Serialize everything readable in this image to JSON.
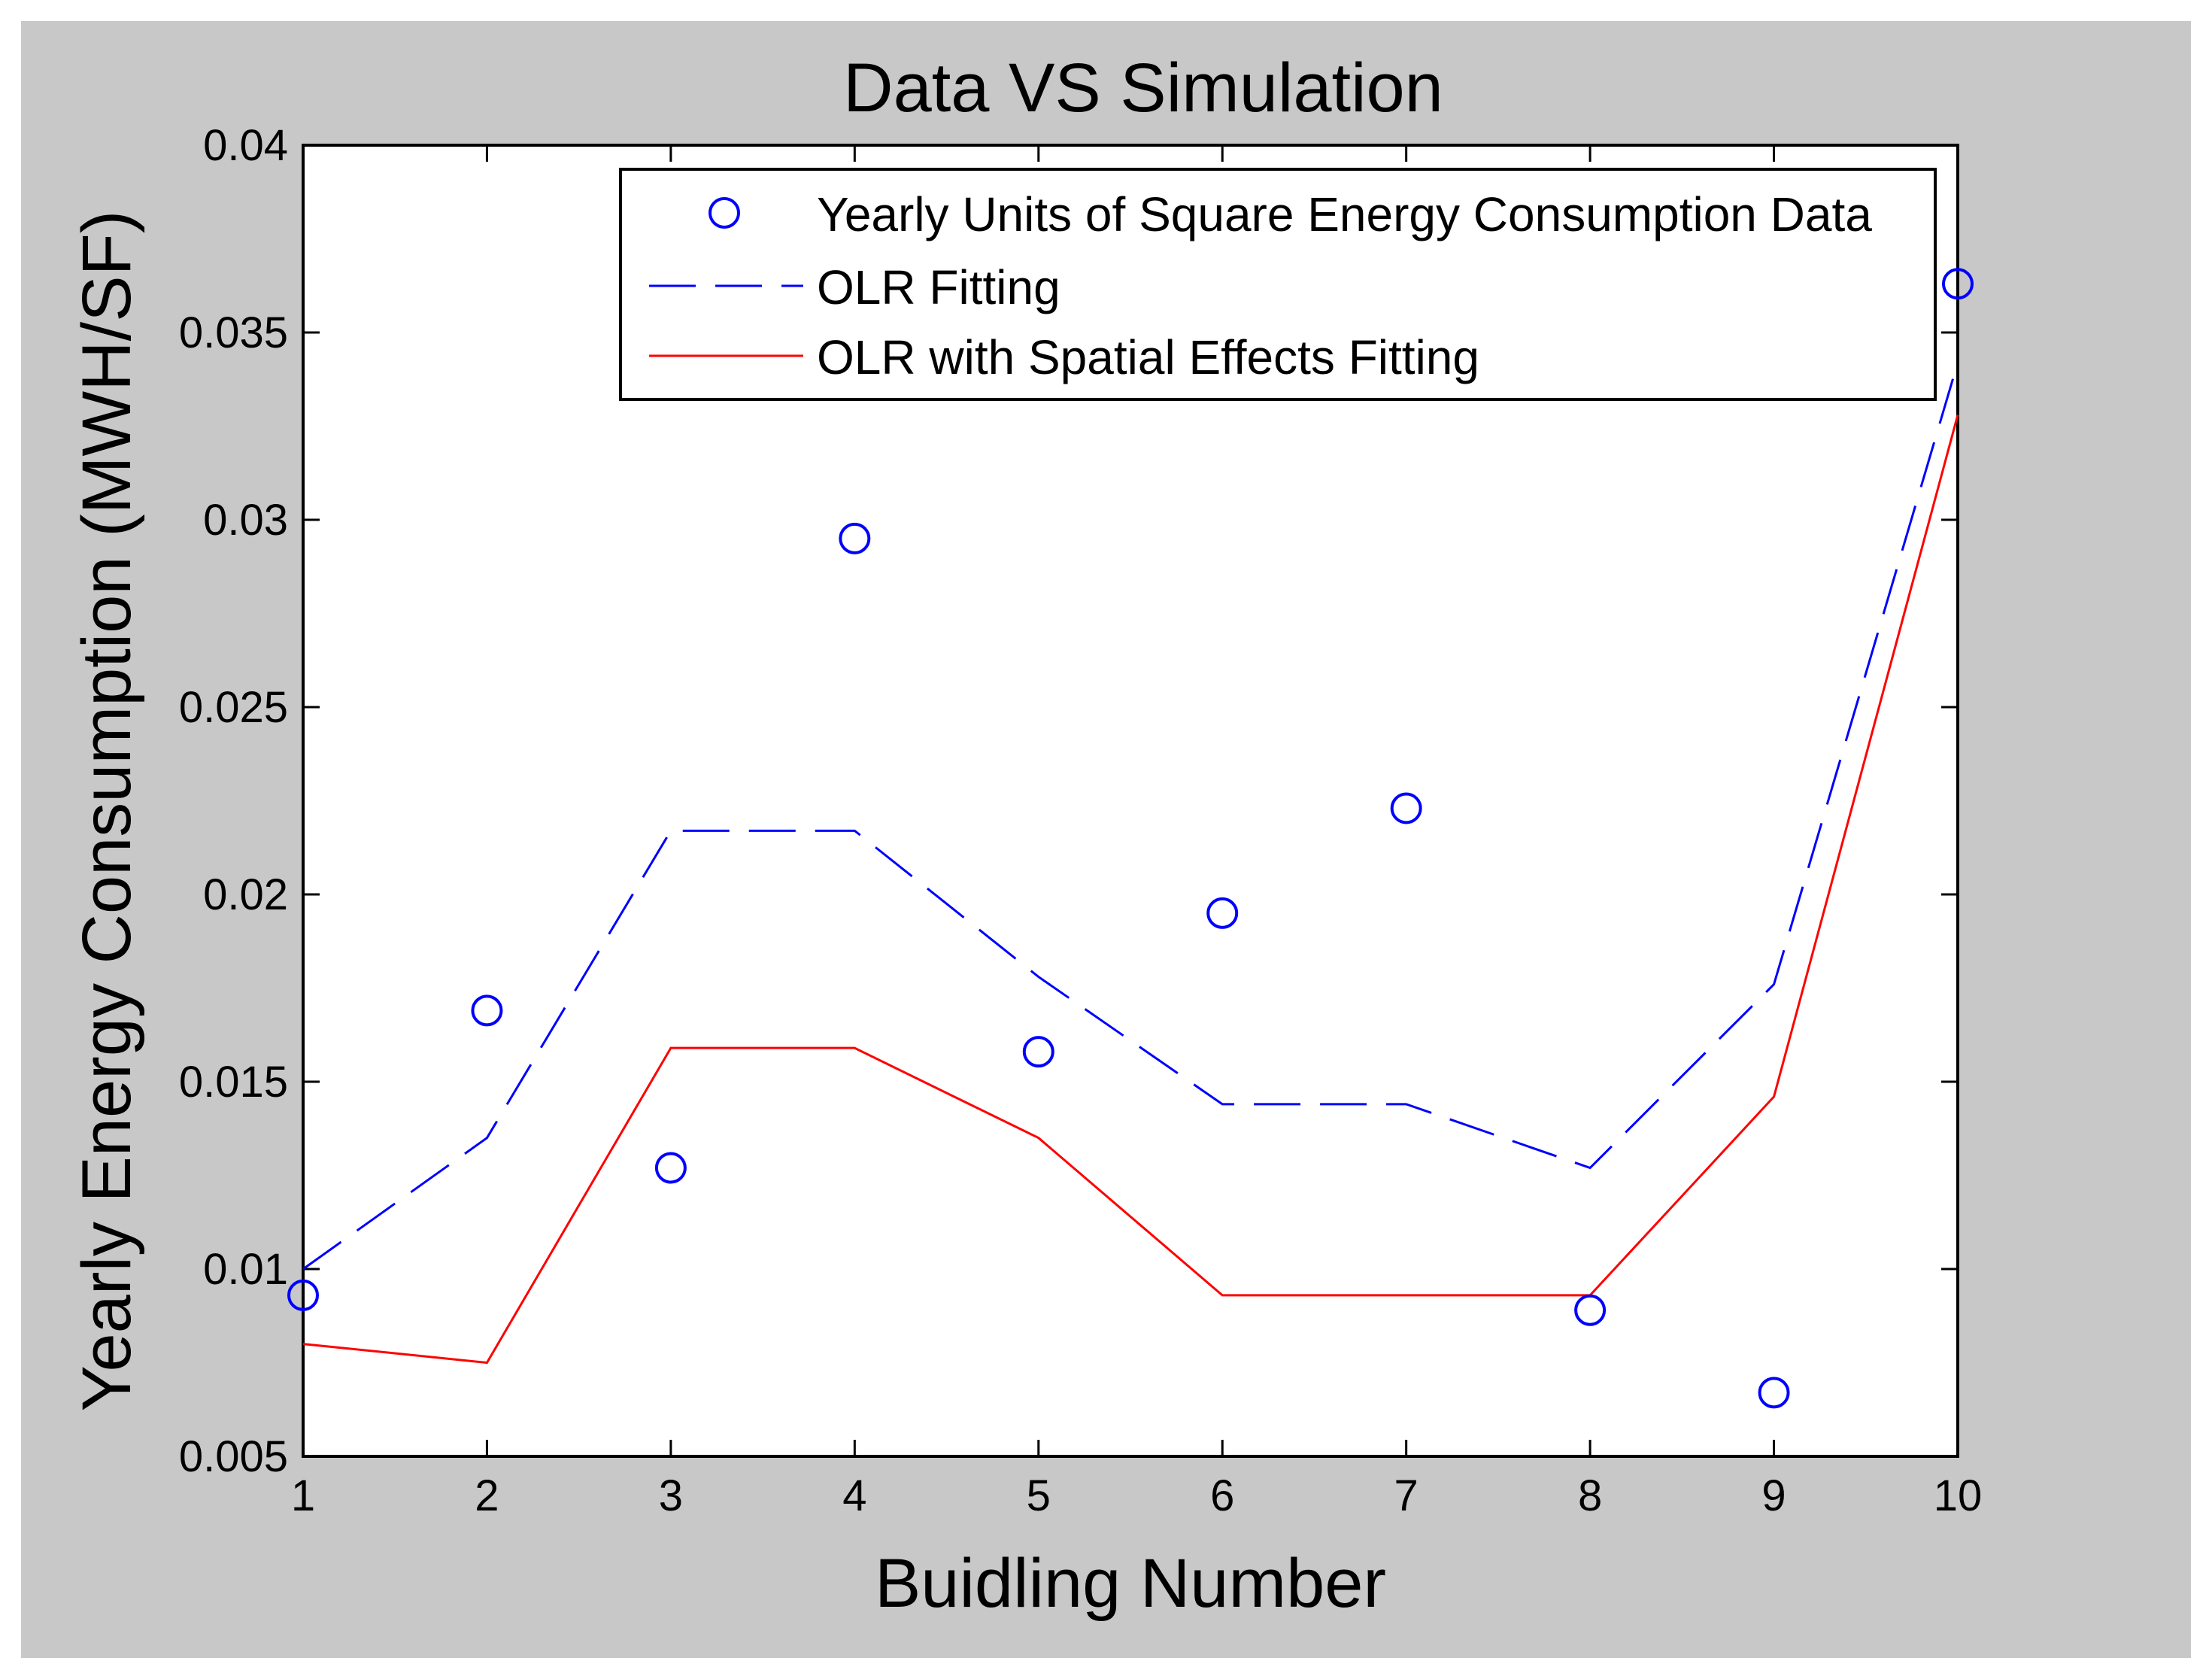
{
  "chart_data": {
    "type": "line",
    "title": "Data VS Simulation",
    "xlabel": "Buidling Number",
    "ylabel": "Yearly Energy Consumption (MWH/SF)",
    "xlim": [
      1,
      10
    ],
    "ylim": [
      0.005,
      0.04
    ],
    "xticks": [
      1,
      2,
      3,
      4,
      5,
      6,
      7,
      8,
      9,
      10
    ],
    "xtick_labels": [
      "1",
      "2",
      "3",
      "4",
      "5",
      "6",
      "7",
      "8",
      "9",
      "10"
    ],
    "yticks": [
      0.005,
      0.01,
      0.015,
      0.02,
      0.025,
      0.03,
      0.035,
      0.04
    ],
    "ytick_labels": [
      "0.005",
      "0.01",
      "0.015",
      "0.02",
      "0.025",
      "0.03",
      "0.035",
      "0.04"
    ],
    "grid": false,
    "legend_position": "top-right",
    "x": [
      1,
      2,
      3,
      4,
      5,
      6,
      7,
      8,
      9,
      10
    ],
    "series": [
      {
        "name": "Yearly Units of Square Energy Consumption Data",
        "style": "markers",
        "marker": "circle",
        "color": "#0000ff",
        "values": [
          0.0093,
          0.0169,
          0.0127,
          0.0295,
          0.0158,
          0.0195,
          0.0223,
          0.0089,
          0.0067,
          0.0363
        ]
      },
      {
        "name": "OLR Fitting",
        "style": "dashed",
        "color": "#0000ff",
        "values": [
          0.01,
          0.0135,
          0.0217,
          0.0217,
          0.0178,
          0.0144,
          0.0144,
          0.0127,
          0.0176,
          0.0342
        ]
      },
      {
        "name": "OLR with Spatial Effects Fitting",
        "style": "solid",
        "color": "#ff0000",
        "values": [
          0.008,
          0.0075,
          0.0159,
          0.0159,
          0.0135,
          0.0093,
          0.0093,
          0.0093,
          0.0146,
          0.0328
        ]
      }
    ]
  }
}
